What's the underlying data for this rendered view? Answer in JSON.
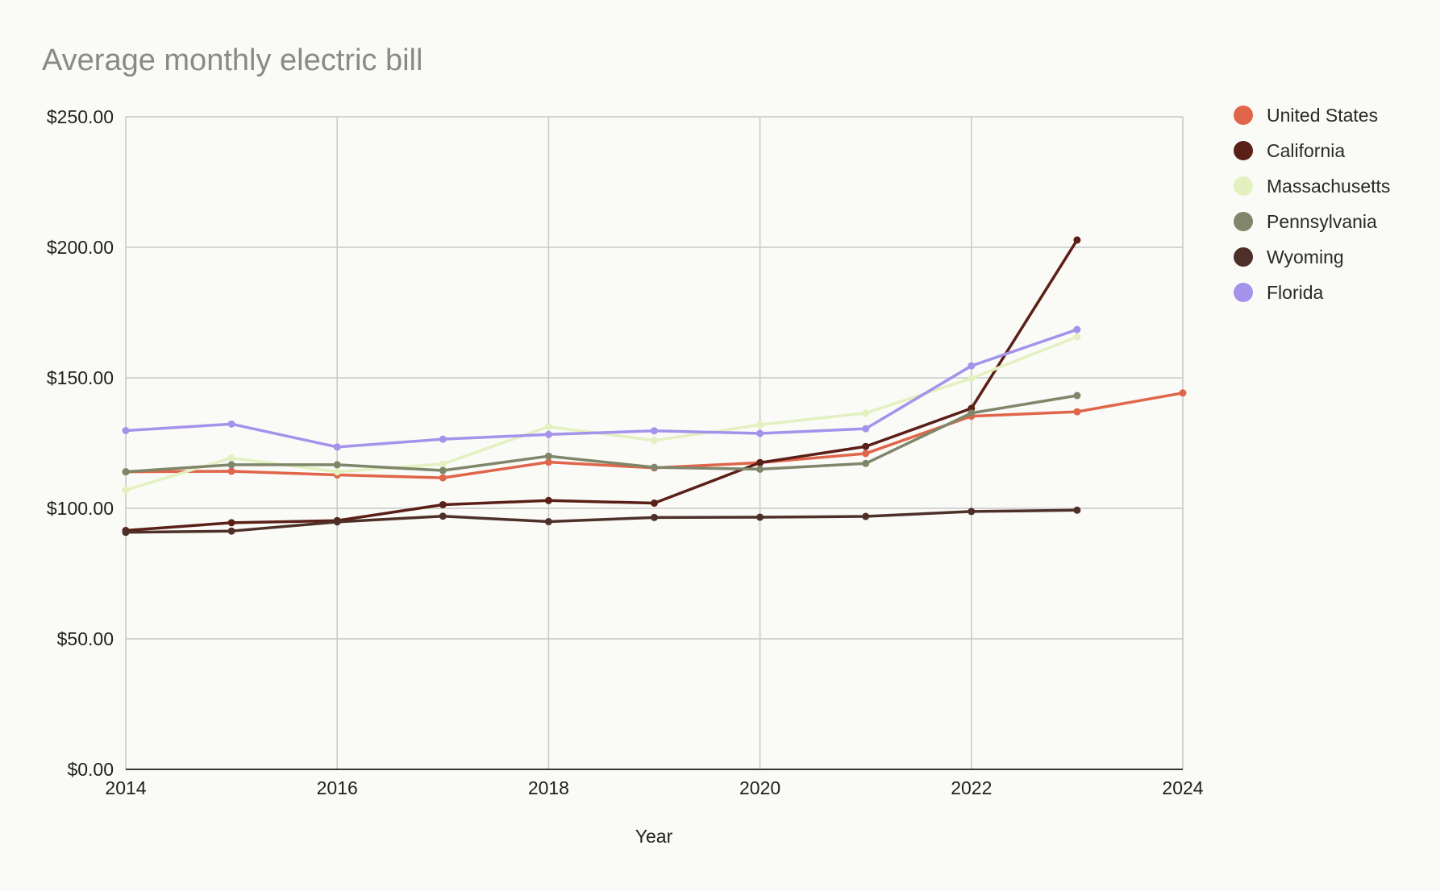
{
  "chart_data": {
    "type": "line",
    "title": "Average monthly electric bill",
    "xlabel": "Year",
    "ylabel": "",
    "xlim": [
      2014,
      2024
    ],
    "ylim": [
      0,
      250
    ],
    "x_ticks": [
      2014,
      2016,
      2018,
      2020,
      2022,
      2024
    ],
    "y_ticks": [
      0,
      50,
      100,
      150,
      200,
      250
    ],
    "x_tick_labels": [
      "2014",
      "2016",
      "2018",
      "2020",
      "2022",
      "2024"
    ],
    "y_tick_labels": [
      "$0.00",
      "$50.00",
      "$100.00",
      "$150.00",
      "$200.00",
      "$250.00"
    ],
    "grid": true,
    "legend_position": "right",
    "series": [
      {
        "name": "United States",
        "color": "#e0654a",
        "x": [
          2014,
          2015,
          2016,
          2017,
          2018,
          2019,
          2020,
          2021,
          2022,
          2023,
          2024
        ],
        "values": [
          114.0,
          114.2,
          112.8,
          111.7,
          117.7,
          115.5,
          117.5,
          121.0,
          135.3,
          137.0,
          144.2
        ]
      },
      {
        "name": "California",
        "color": "#5a1f17",
        "x": [
          2014,
          2015,
          2016,
          2017,
          2018,
          2019,
          2020,
          2021,
          2022,
          2023
        ],
        "values": [
          91.5,
          94.5,
          95.3,
          101.4,
          103.0,
          102.0,
          117.5,
          123.7,
          138.3,
          202.8
        ]
      },
      {
        "name": "Massachusetts",
        "color": "#e3f1c0",
        "x": [
          2014,
          2015,
          2016,
          2017,
          2018,
          2019,
          2020,
          2021,
          2022,
          2023
        ],
        "values": [
          107.0,
          119.3,
          114.0,
          117.0,
          131.3,
          126.0,
          132.0,
          136.5,
          149.8,
          165.7
        ]
      },
      {
        "name": "Pennsylvania",
        "color": "#7f866a",
        "x": [
          2014,
          2015,
          2016,
          2017,
          2018,
          2019,
          2020,
          2021,
          2022,
          2023
        ],
        "values": [
          114.0,
          116.7,
          116.7,
          114.5,
          120.0,
          115.7,
          115.0,
          117.2,
          136.5,
          143.2
        ]
      },
      {
        "name": "Wyoming",
        "color": "#4e3029",
        "x": [
          2014,
          2015,
          2016,
          2017,
          2018,
          2019,
          2020,
          2021,
          2022,
          2023
        ],
        "values": [
          90.8,
          91.3,
          94.8,
          97.0,
          94.9,
          96.5,
          96.6,
          96.9,
          98.8,
          99.3
        ]
      },
      {
        "name": "Florida",
        "color": "#a592eb",
        "x": [
          2014,
          2015,
          2016,
          2017,
          2018,
          2019,
          2020,
          2021,
          2022,
          2023
        ],
        "values": [
          129.8,
          132.3,
          123.5,
          126.5,
          128.3,
          129.7,
          128.7,
          130.5,
          154.6,
          168.5
        ]
      }
    ]
  }
}
